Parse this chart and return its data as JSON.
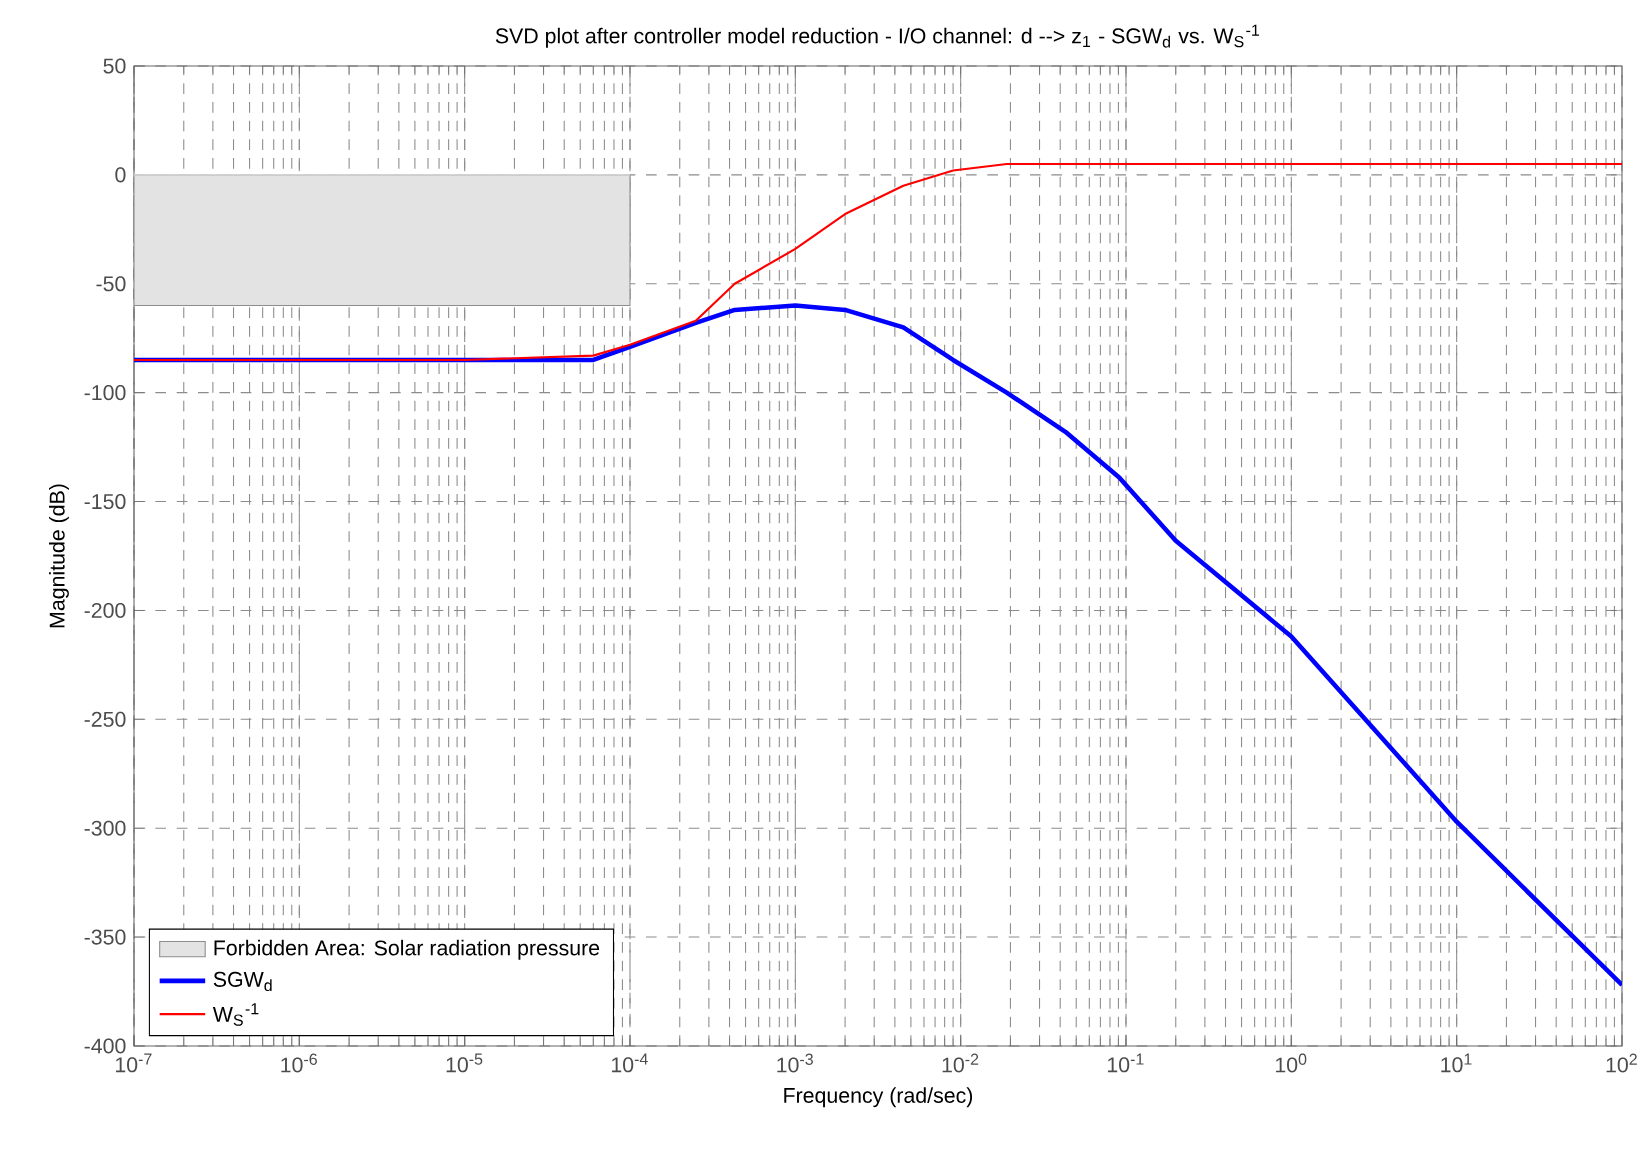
{
  "chart_data": {
    "type": "line",
    "title": "SVD plot after controller model reduction - I/O channel: d --> z$_{1}$  -  SGW$_{d}$ vs. W$_{S}$$^{-1}$",
    "xlabel": "Frequency  (rad/sec)",
    "ylabel": "Magnitude (dB)",
    "log": "x",
    "grid": true,
    "legend": "bottom left",
    "marker": "none",
    "line_style": "solid",
    "xlim": [
      1e-07,
      100
    ],
    "ylim": [
      -400,
      50
    ],
    "xticks": [
      {
        "value": 1e-07,
        "label": "10$^{-7}$"
      },
      {
        "value": 1e-06,
        "label": "10$^{-6}$"
      },
      {
        "value": 1e-05,
        "label": "10$^{-5}$"
      },
      {
        "value": 0.0001,
        "label": "10$^{-4}$"
      },
      {
        "value": 0.001,
        "label": "10$^{-3}$"
      },
      {
        "value": 0.01,
        "label": "10$^{-2}$"
      },
      {
        "value": 0.1,
        "label": "10$^{-1}$"
      },
      {
        "value": 1,
        "label": "10$^{0}$"
      },
      {
        "value": 10,
        "label": "10$^{1}$"
      },
      {
        "value": 100,
        "label": "10$^{2}$"
      }
    ],
    "yticks": [
      -400,
      -350,
      -300,
      -250,
      -200,
      -150,
      -100,
      -50,
      0,
      50
    ],
    "series": [
      {
        "name": "SGW$_{d}$",
        "color": "#0000ff",
        "x": [
          1e-07,
          1e-05,
          6e-05,
          0.0001,
          0.00025,
          0.00043,
          0.001,
          0.002,
          0.0045,
          0.009,
          0.019,
          0.043,
          0.091,
          0.2,
          1,
          10,
          100
        ],
        "values": [
          -85,
          -85,
          -85,
          -79,
          -68,
          -62,
          -60,
          -62,
          -70,
          -85,
          -100,
          -118,
          -139,
          -168,
          -212,
          -297,
          -372
        ]
      },
      {
        "name": "W$_{S}$$^{-1}$",
        "color": "#ff0000",
        "x": [
          1e-07,
          1e-05,
          6e-05,
          0.0001,
          0.00025,
          0.00043,
          0.001,
          0.002,
          0.0045,
          0.009,
          0.019,
          0.043,
          0.1,
          100
        ],
        "values": [
          -85,
          -85,
          -83,
          -78,
          -67,
          -50,
          -34,
          -18,
          -5,
          2,
          5,
          5,
          5,
          5
        ]
      },
      {
        "type": "line",
        "name": "Forbidden Area: Solar radiation pressure",
        "color": "#e3e3e3",
        "x": [
          1e-07,
          0.0001
        ],
        "values": [
          0,
          0
        ],
        "lower": [
          -60,
          -60
        ],
        "upper": [
          0,
          0
        ]
      }
    ]
  }
}
